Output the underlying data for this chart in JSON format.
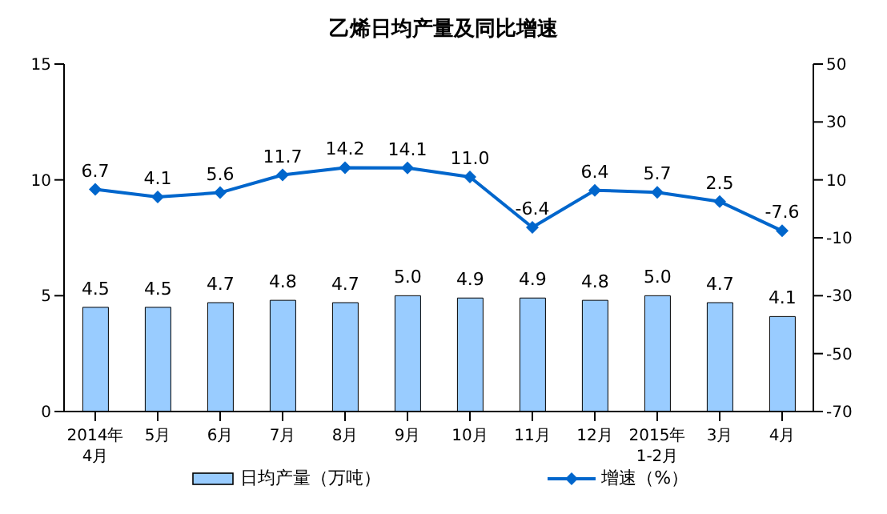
{
  "chart_data": {
    "type": "bar",
    "title": "乙烯日均产量及同比增速",
    "categories": [
      "2014年\n4月",
      "5月",
      "6月",
      "7月",
      "8月",
      "9月",
      "10月",
      "11月",
      "12月",
      "2015年\n1-2月",
      "3月",
      "4月"
    ],
    "series": [
      {
        "name": "日均产量（万吨）",
        "color": "#99ccff",
        "values": [
          4.5,
          4.5,
          4.7,
          4.8,
          4.7,
          5.0,
          4.9,
          4.9,
          4.8,
          5.0,
          4.7,
          4.1
        ],
        "value_labels": [
          "4.5",
          "4.5",
          "4.7",
          "4.8",
          "4.7",
          "5.0",
          "4.9",
          "4.9",
          "4.8",
          "5.0",
          "4.7",
          "4.1"
        ]
      },
      {
        "name": "增速（%）",
        "type": "line",
        "axis": "y2",
        "color": "#0066cc",
        "marker": "diamond",
        "values": [
          6.7,
          4.1,
          5.6,
          11.7,
          14.2,
          14.1,
          11.0,
          -6.4,
          6.4,
          5.7,
          2.5,
          -7.6
        ],
        "value_labels": [
          "6.7",
          "4.1",
          "5.6",
          "11.7",
          "14.2",
          "14.1",
          "11.0",
          "-6.4",
          "6.4",
          "5.7",
          "2.5",
          "-7.6"
        ]
      }
    ],
    "ylim": [
      0,
      15
    ],
    "yticks": [
      0,
      5,
      10,
      15
    ],
    "y2lim": [
      -70,
      50
    ],
    "y2ticks": [
      -70,
      -50,
      -30,
      -10,
      10,
      30,
      50
    ],
    "legend": "bottom"
  }
}
